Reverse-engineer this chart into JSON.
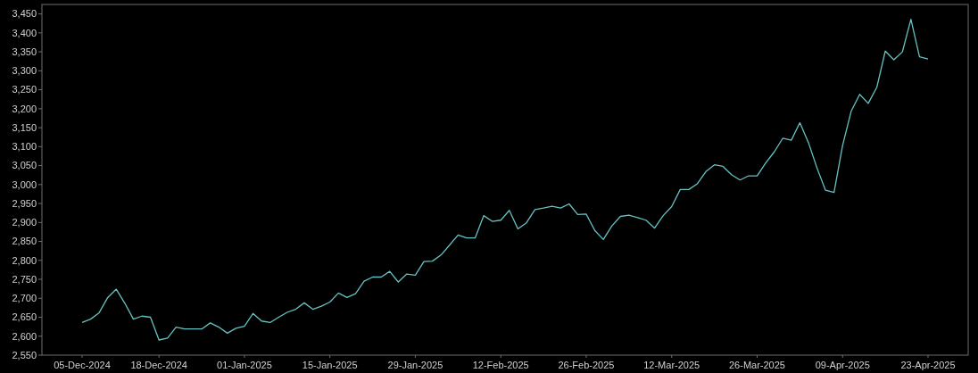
{
  "chart_data": {
    "type": "line",
    "categories": [
      "05-Dec-2024",
      null,
      null,
      null,
      null,
      null,
      null,
      null,
      null,
      "18-Dec-2024",
      null,
      null,
      null,
      null,
      null,
      null,
      null,
      null,
      null,
      "01-Jan-2025",
      null,
      null,
      null,
      null,
      null,
      null,
      null,
      null,
      null,
      "15-Jan-2025",
      null,
      null,
      null,
      null,
      null,
      null,
      null,
      null,
      null,
      "29-Jan-2025",
      null,
      null,
      null,
      null,
      null,
      null,
      null,
      null,
      null,
      "12-Feb-2025",
      null,
      null,
      null,
      null,
      null,
      null,
      null,
      null,
      null,
      "26-Feb-2025",
      null,
      null,
      null,
      null,
      null,
      null,
      null,
      null,
      null,
      "12-Mar-2025",
      null,
      null,
      null,
      null,
      null,
      null,
      null,
      null,
      null,
      "26-Mar-2025",
      null,
      null,
      null,
      null,
      null,
      null,
      null,
      null,
      null,
      "09-Apr-2025",
      null,
      null,
      null,
      null,
      null,
      null,
      null,
      null,
      null,
      "23-Apr-2025"
    ],
    "series": [
      {
        "color": "#66c2c2",
        "values": [
          2636,
          2645,
          2662,
          2702,
          2724,
          2687,
          2645,
          2653,
          2650,
          2590,
          2595,
          2624,
          2619,
          2619,
          2619,
          2635,
          2624,
          2608,
          2621,
          2626,
          2660,
          2640,
          2636,
          2650,
          2663,
          2671,
          2688,
          2671,
          2679,
          2690,
          2714,
          2702,
          2712,
          2745,
          2756,
          2756,
          2771,
          2743,
          2764,
          2761,
          2797,
          2798,
          2814,
          2840,
          2867,
          2859,
          2859,
          2918,
          2903,
          2906,
          2932,
          2883,
          2899,
          2934,
          2938,
          2943,
          2938,
          2949,
          2921,
          2922,
          2879,
          2855,
          2891,
          2916,
          2919,
          2913,
          2906,
          2885,
          2918,
          2942,
          2987,
          2987,
          3002,
          3034,
          3052,
          3048,
          3026,
          3012,
          3023,
          3023,
          3057,
          3086,
          3122,
          3117,
          3163,
          3111,
          3044,
          2985,
          2979,
          3103,
          3193,
          3238,
          3214,
          3256,
          3352,
          3329,
          3350,
          3436,
          3337,
          3331
        ]
      }
    ],
    "ylim": [
      2550,
      3475
    ],
    "yticks": [
      {
        "value": 2550,
        "label": "2,550"
      },
      {
        "value": 2600,
        "label": "2,600"
      },
      {
        "value": 2650,
        "label": "2,650"
      },
      {
        "value": 2700,
        "label": "2,700"
      },
      {
        "value": 2750,
        "label": "2,750"
      },
      {
        "value": 2800,
        "label": "2,800"
      },
      {
        "value": 2850,
        "label": "2,850"
      },
      {
        "value": 2900,
        "label": "2,900"
      },
      {
        "value": 2950,
        "label": "2,950"
      },
      {
        "value": 3000,
        "label": "3,000"
      },
      {
        "value": 3050,
        "label": "3,050"
      },
      {
        "value": 3100,
        "label": "3,100"
      },
      {
        "value": 3150,
        "label": "3,150"
      },
      {
        "value": 3200,
        "label": "3,200"
      },
      {
        "value": 3250,
        "label": "3,250"
      },
      {
        "value": 3300,
        "label": "3,300"
      },
      {
        "value": 3350,
        "label": "3,350"
      },
      {
        "value": 3400,
        "label": "3,400"
      },
      {
        "value": 3450,
        "label": "3,450"
      }
    ],
    "grid": false,
    "marker": "none",
    "line_style": "solid"
  }
}
